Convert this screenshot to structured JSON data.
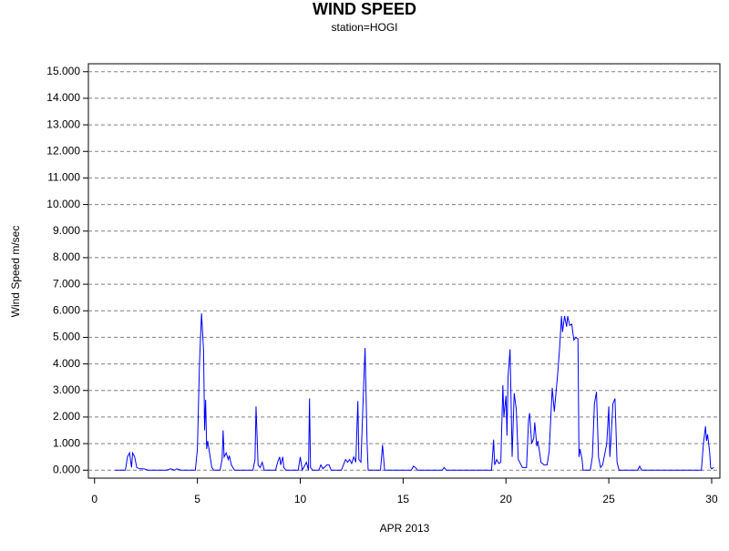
{
  "chart_data": {
    "type": "line",
    "title": "WIND SPEED",
    "subtitle": "station=HOGI",
    "x_label": "APR 2013",
    "y_label": "Wind Speed m/sec",
    "color": "#0000ff",
    "grid": true,
    "xlim": [
      -0.3,
      30.4
    ],
    "ylim": [
      -0.3,
      15.3
    ],
    "xticks": [
      0,
      5,
      10,
      15,
      20,
      25,
      30
    ],
    "yticks": [
      {
        "value": 0,
        "label": "0.000"
      },
      {
        "value": 1,
        "label": "1.000"
      },
      {
        "value": 2,
        "label": "2.000"
      },
      {
        "value": 3,
        "label": "3.000"
      },
      {
        "value": 4,
        "label": "4.000"
      },
      {
        "value": 5,
        "label": "5.000"
      },
      {
        "value": 6,
        "label": "6.000"
      },
      {
        "value": 7,
        "label": "7.000"
      },
      {
        "value": 8,
        "label": "8.000"
      },
      {
        "value": 9,
        "label": "9.000"
      },
      {
        "value": 10,
        "label": "10.000"
      },
      {
        "value": 11,
        "label": "11.000"
      },
      {
        "value": 12,
        "label": "12.000"
      },
      {
        "value": 13,
        "label": "13.000"
      },
      {
        "value": 14,
        "label": "14.000"
      },
      {
        "value": 15,
        "label": "15.000"
      }
    ],
    "x": [
      1.0,
      1.5,
      1.6,
      1.7,
      1.8,
      1.85,
      1.95,
      2.05,
      2.2,
      2.4,
      2.6,
      3.5,
      3.7,
      3.9,
      4.0,
      4.2,
      4.9,
      5.0,
      5.1,
      5.2,
      5.3,
      5.35,
      5.4,
      5.45,
      5.5,
      5.6,
      5.7,
      5.8,
      6.1,
      6.2,
      6.25,
      6.3,
      6.4,
      6.5,
      6.55,
      6.65,
      6.8,
      7.7,
      7.8,
      7.85,
      7.95,
      8.05,
      8.15,
      8.25,
      8.8,
      8.9,
      9.0,
      9.05,
      9.15,
      9.2,
      9.3,
      9.9,
      10.0,
      10.1,
      10.3,
      10.4,
      10.45,
      10.5,
      10.6,
      10.9,
      11.0,
      11.1,
      11.3,
      11.4,
      11.5,
      12.0,
      12.1,
      12.2,
      12.3,
      12.4,
      12.5,
      12.6,
      12.7,
      12.8,
      12.85,
      12.95,
      13.05,
      13.15,
      13.25,
      13.3,
      13.9,
      14.0,
      14.1,
      15.4,
      15.5,
      15.6,
      15.7,
      16.9,
      17.0,
      17.1,
      19.3,
      19.4,
      19.45,
      19.55,
      19.65,
      19.75,
      19.85,
      19.9,
      20.0,
      20.05,
      20.1,
      20.2,
      20.3,
      20.4,
      20.5,
      20.6,
      20.8,
      21.0,
      21.1,
      21.15,
      21.25,
      21.35,
      21.4,
      21.5,
      21.55,
      21.65,
      21.7,
      21.85,
      22.0,
      22.1,
      22.25,
      22.35,
      22.5,
      22.6,
      22.7,
      22.75,
      22.85,
      22.95,
      23.0,
      23.1,
      23.2,
      23.3,
      23.4,
      23.5,
      23.55,
      23.6,
      23.7,
      23.75,
      24.1,
      24.2,
      24.3,
      24.4,
      24.5,
      24.6,
      24.7,
      24.85,
      24.9,
      25.0,
      25.05,
      25.1,
      25.2,
      25.3,
      25.4,
      25.5,
      26.4,
      26.5,
      26.6,
      29.5,
      29.6,
      29.7,
      29.75,
      29.8,
      29.9,
      29.95,
      30.0,
      30.1
    ],
    "values": [
      0,
      0,
      0.5,
      0.65,
      0.1,
      0.65,
      0.5,
      0.1,
      0.05,
      0.05,
      0,
      0,
      0.05,
      0,
      0.05,
      0,
      0,
      0.8,
      4.0,
      5.9,
      4.5,
      1.5,
      2.65,
      0.8,
      1.1,
      0.6,
      0.1,
      0,
      0,
      0.4,
      1.5,
      0.5,
      0.65,
      0.4,
      0.55,
      0.2,
      0,
      0,
      0.4,
      2.4,
      0.2,
      0.1,
      0.3,
      0,
      0,
      0.3,
      0.5,
      0.2,
      0.5,
      0.1,
      0,
      0,
      0.5,
      0,
      0.3,
      0,
      2.7,
      0.1,
      0,
      0,
      0.2,
      0.05,
      0.2,
      0.2,
      0,
      0,
      0.2,
      0.4,
      0.3,
      0.4,
      0.25,
      0.5,
      0.3,
      2.6,
      0.4,
      0.3,
      2.5,
      4.6,
      1.0,
      0,
      0,
      0.95,
      0,
      0,
      0.15,
      0.1,
      0,
      0,
      0.1,
      0,
      0,
      1.15,
      0.2,
      0.4,
      0.25,
      0.3,
      3.2,
      2.0,
      2.8,
      1.3,
      3.5,
      4.55,
      0.5,
      2.9,
      2.3,
      0.4,
      0.1,
      0.1,
      1.9,
      2.15,
      1.0,
      1.2,
      1.8,
      0.9,
      1.1,
      0.6,
      0.3,
      0.2,
      0.2,
      0.7,
      3.1,
      2.2,
      3.5,
      4.5,
      5.8,
      5.2,
      5.8,
      5.4,
      5.8,
      5.45,
      5.5,
      4.9,
      5.0,
      4.95,
      0.5,
      0.8,
      0.4,
      0,
      0,
      0.5,
      2.5,
      2.95,
      0.5,
      0.1,
      0.2,
      0.8,
      1.0,
      2.4,
      0.5,
      1.1,
      2.5,
      2.7,
      0.3,
      0,
      0,
      0.15,
      0,
      0,
      1.0,
      1.65,
      1.1,
      1.35,
      0.7,
      0.1,
      0.05,
      0.1
    ]
  }
}
